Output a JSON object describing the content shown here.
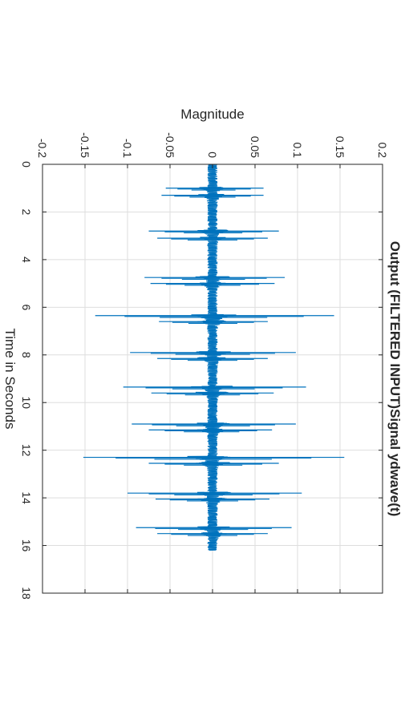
{
  "chart_data": {
    "type": "line",
    "title": "Output (FILTERED INPUT)Signal ydwave(t)",
    "xlabel": "Time in Seconds",
    "ylabel": "Magnitude",
    "xlim": [
      0,
      18
    ],
    "ylim": [
      -0.2,
      0.2
    ],
    "xticks": [
      "0",
      "2",
      "4",
      "6",
      "8",
      "10",
      "12",
      "14",
      "16",
      "18"
    ],
    "yticks": [
      "-0.2",
      "-0.15",
      "-0.1",
      "-0.05",
      "0",
      "0.05",
      "0.1",
      "0.15",
      "0.2"
    ],
    "grid": true,
    "orientation": "rotated 90 degrees clockwise",
    "line_color": "#0072bd",
    "signal_duration": 16.2,
    "baseline_noise": 0.006,
    "bursts": [
      {
        "t": 1.0,
        "max": 0.06,
        "min": -0.055
      },
      {
        "t": 1.3,
        "max": 0.06,
        "min": -0.06
      },
      {
        "t": 2.8,
        "max": 0.078,
        "min": -0.075
      },
      {
        "t": 3.1,
        "max": 0.065,
        "min": -0.065
      },
      {
        "t": 4.75,
        "max": 0.085,
        "min": -0.08
      },
      {
        "t": 5.0,
        "max": 0.073,
        "min": -0.073
      },
      {
        "t": 6.35,
        "max": 0.143,
        "min": -0.138
      },
      {
        "t": 6.6,
        "max": 0.065,
        "min": -0.063
      },
      {
        "t": 7.9,
        "max": 0.098,
        "min": -0.097
      },
      {
        "t": 8.15,
        "max": 0.065,
        "min": -0.065
      },
      {
        "t": 9.35,
        "max": 0.11,
        "min": -0.105
      },
      {
        "t": 9.6,
        "max": 0.072,
        "min": -0.072
      },
      {
        "t": 10.9,
        "max": 0.098,
        "min": -0.095
      },
      {
        "t": 11.15,
        "max": 0.07,
        "min": -0.075
      },
      {
        "t": 12.3,
        "max": 0.155,
        "min": -0.152
      },
      {
        "t": 12.55,
        "max": 0.078,
        "min": -0.075
      },
      {
        "t": 13.8,
        "max": 0.105,
        "min": -0.1
      },
      {
        "t": 14.05,
        "max": 0.067,
        "min": -0.067
      },
      {
        "t": 15.25,
        "max": 0.093,
        "min": -0.09
      },
      {
        "t": 15.5,
        "max": 0.065,
        "min": -0.065
      }
    ]
  }
}
